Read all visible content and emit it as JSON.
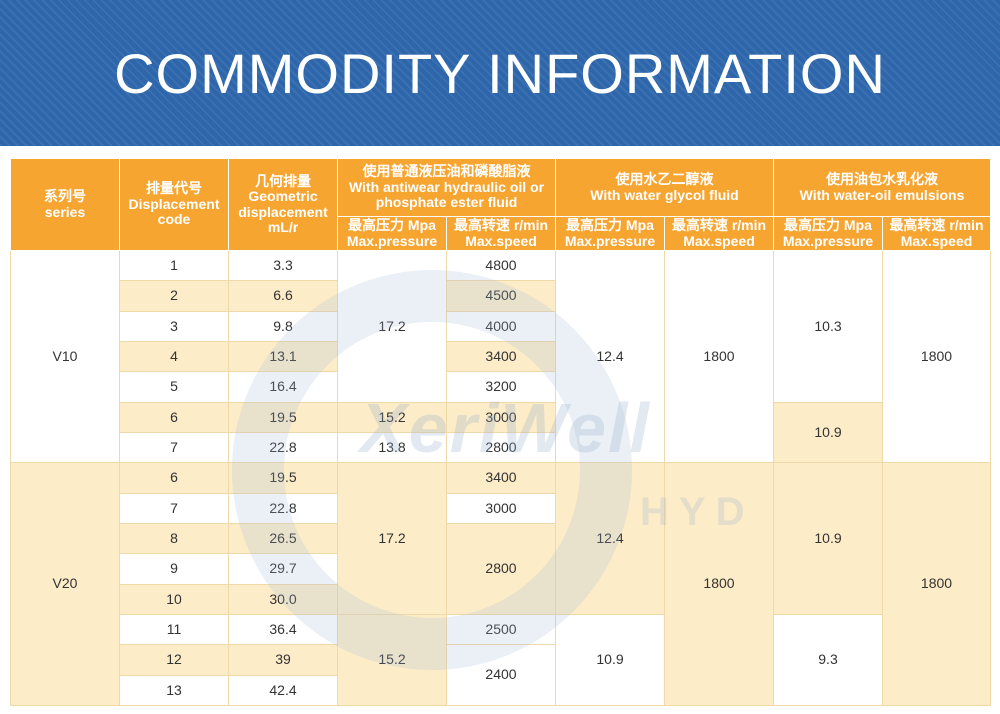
{
  "banner": {
    "title": "COMMODITY INFORMATION"
  },
  "header": {
    "series": {
      "cn": "系列号",
      "en": "series"
    },
    "code": {
      "cn": "排量代号",
      "en1": "Displacement",
      "en2": "code"
    },
    "geo": {
      "cn": "几何排量",
      "en1": "Geometric",
      "en2": "displacement",
      "en3": "mL/r"
    },
    "antiwear": {
      "cn": "使用普通液压油和磷酸脂液",
      "en1": "With antiwear hydraulic oil or",
      "en2": "phosphate ester fluid"
    },
    "glycol": {
      "cn": "使用水乙二醇液",
      "en": "With water glycol fluid"
    },
    "emulsion": {
      "cn": "使用油包水乳化液",
      "en": "With water-oil emulsions"
    },
    "pressure": {
      "cn": "最高压力 Mpa",
      "en": "Max.pressure"
    },
    "speed": {
      "cn": "最高转速 r/min",
      "en": "Max.speed"
    }
  },
  "rows": [
    {
      "series": "V10",
      "code": "1",
      "disp": "3.3",
      "aw_p": "17.2",
      "aw_s": "4800",
      "wg_p": "12.4",
      "wg_s": "1800",
      "em_p": "10.3",
      "em_s": "1800"
    },
    {
      "code": "2",
      "disp": "6.6",
      "aw_s": "4500"
    },
    {
      "code": "3",
      "disp": "9.8",
      "aw_s": "4000"
    },
    {
      "code": "4",
      "disp": "13.1",
      "aw_s": "3400"
    },
    {
      "code": "5",
      "disp": "16.4",
      "aw_s": "3200"
    },
    {
      "code": "6",
      "disp": "19.5",
      "aw_p": "15.2",
      "aw_s": "3000",
      "em_p": "10.9"
    },
    {
      "code": "7",
      "disp": "22.8",
      "aw_p": "13.8",
      "aw_s": "2800"
    },
    {
      "series": "V20",
      "code": "6",
      "disp": "19.5",
      "aw_p": "17.2",
      "aw_s": "3400",
      "wg_p": "12.4",
      "wg_s": "1800",
      "em_p": "10.9",
      "em_s": "1800"
    },
    {
      "code": "7",
      "disp": "22.8",
      "aw_s": "3000"
    },
    {
      "code": "8",
      "disp": "26.5",
      "aw_s": "2800"
    },
    {
      "code": "9",
      "disp": "29.7"
    },
    {
      "code": "10",
      "disp": "30.0"
    },
    {
      "code": "11",
      "disp": "36.4",
      "aw_s": "2500",
      "wg_p": "10.9",
      "em_p": "9.3"
    },
    {
      "code": "12",
      "disp": "39",
      "aw_p": "15.2",
      "aw_s": "2400"
    },
    {
      "code": "13",
      "disp": "42.4"
    }
  ],
  "watermark": {
    "brand": "XeriWell",
    "sub": "HYD"
  },
  "colors": {
    "banner": "#2d66ab",
    "header": "#f7a531",
    "band": "#fdecc8"
  }
}
